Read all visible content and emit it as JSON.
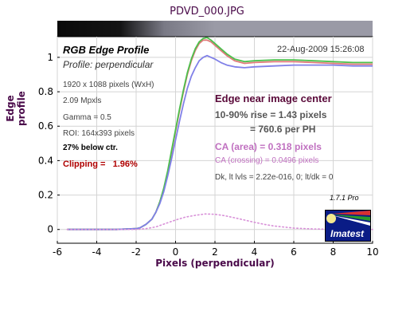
{
  "file_title": "PDVD_000.JPG",
  "chart_data": {
    "type": "line",
    "title": "RGB Edge Profile",
    "subtitle": "Profile: perpendicular",
    "timestamp": "22-Aug-2009 15:26:08",
    "xlabel": "Pixels (perpendicular)",
    "ylabel": "Edge profile",
    "xlim": [
      -6,
      10
    ],
    "ylim": [
      -0.08,
      1.12
    ],
    "xticks": [
      "-6",
      "-4",
      "-2",
      "0",
      "2",
      "4",
      "6",
      "8",
      "10"
    ],
    "yticks": [
      "0",
      "0.2",
      "0.4",
      "0.6",
      "0.8",
      "1"
    ],
    "grid": true,
    "series": [
      {
        "color": "#e07a7a",
        "x": [
          -5.5,
          -3,
          -2,
          -1.8,
          -1.5,
          -1.2,
          -1,
          -0.8,
          -0.6,
          -0.4,
          -0.2,
          0,
          0.2,
          0.4,
          0.6,
          0.8,
          1,
          1.2,
          1.4,
          1.6,
          1.8,
          2,
          2.3,
          2.6,
          3,
          3.5,
          4,
          5,
          6,
          7,
          8,
          9,
          10
        ],
        "y": [
          0,
          0,
          0.005,
          0.01,
          0.03,
          0.06,
          0.1,
          0.16,
          0.23,
          0.33,
          0.45,
          0.57,
          0.69,
          0.8,
          0.9,
          0.98,
          1.04,
          1.08,
          1.1,
          1.1,
          1.09,
          1.07,
          1.04,
          1.01,
          0.98,
          0.965,
          0.97,
          0.975,
          0.975,
          0.97,
          0.965,
          0.96,
          0.96
        ]
      },
      {
        "color": "#4cc04c",
        "x": [
          -5.5,
          -3,
          -2,
          -1.8,
          -1.5,
          -1.2,
          -1,
          -0.8,
          -0.6,
          -0.4,
          -0.2,
          0,
          0.2,
          0.4,
          0.6,
          0.8,
          1,
          1.2,
          1.4,
          1.6,
          1.8,
          2,
          2.3,
          2.6,
          3,
          3.5,
          4,
          5,
          6,
          7,
          8,
          9,
          10
        ],
        "y": [
          0,
          0,
          0.005,
          0.01,
          0.03,
          0.06,
          0.1,
          0.16,
          0.24,
          0.34,
          0.46,
          0.58,
          0.7,
          0.81,
          0.91,
          0.99,
          1.05,
          1.09,
          1.11,
          1.115,
          1.1,
          1.08,
          1.05,
          1.02,
          0.99,
          0.975,
          0.98,
          0.985,
          0.985,
          0.98,
          0.975,
          0.97,
          0.97
        ]
      },
      {
        "color": "#8080e8",
        "x": [
          -5.5,
          -3,
          -2,
          -1.8,
          -1.5,
          -1.2,
          -1,
          -0.8,
          -0.6,
          -0.4,
          -0.2,
          0,
          0.2,
          0.4,
          0.6,
          0.8,
          1,
          1.2,
          1.4,
          1.6,
          1.8,
          2,
          2.3,
          2.6,
          3,
          3.5,
          4,
          5,
          6,
          7,
          8,
          9,
          10
        ],
        "y": [
          0,
          0,
          0.005,
          0.01,
          0.03,
          0.06,
          0.1,
          0.15,
          0.22,
          0.31,
          0.41,
          0.52,
          0.63,
          0.73,
          0.82,
          0.89,
          0.94,
          0.98,
          1.0,
          1.01,
          1.0,
          0.99,
          0.97,
          0.955,
          0.945,
          0.94,
          0.945,
          0.95,
          0.955,
          0.955,
          0.955,
          0.95,
          0.95
        ]
      },
      {
        "color": "#d890d8",
        "dotted": true,
        "x": [
          -5.5,
          -2,
          -1.5,
          -1,
          -0.5,
          0,
          0.5,
          1,
          1.5,
          2,
          2.5,
          3,
          3.5,
          4,
          4.5,
          5,
          6,
          7,
          8,
          9,
          10
        ],
        "y": [
          0,
          0,
          0.005,
          0.015,
          0.035,
          0.055,
          0.072,
          0.082,
          0.09,
          0.088,
          0.08,
          0.068,
          0.055,
          0.042,
          0.03,
          0.02,
          0.008,
          0.003,
          0.001,
          0,
          0
        ]
      }
    ],
    "annotations": {
      "pixels": "1920 x 1088 pixels (WxH)",
      "mpxls": "2.09 Mpxls",
      "gamma": "Gamma = 0.5",
      "roi": "ROI: 164x393 pixels",
      "below": "27% below ctr.",
      "clipping": "Clipping =   1.96%",
      "edge_title": "Edge near image center",
      "rise": "10-90% rise = 1.43 pixels",
      "per_ph": "= 760.6 per PH",
      "ca_area": "CA (area) = 0.318 pixels",
      "ca_crossing": "CA (crossing) = 0.0496 pixels",
      "dk": "Dk, lt lvls = 2.22e-016, 0;  lt/dk = 0",
      "version": "1.7.1  Pro",
      "logo_text": "Imatest"
    }
  }
}
